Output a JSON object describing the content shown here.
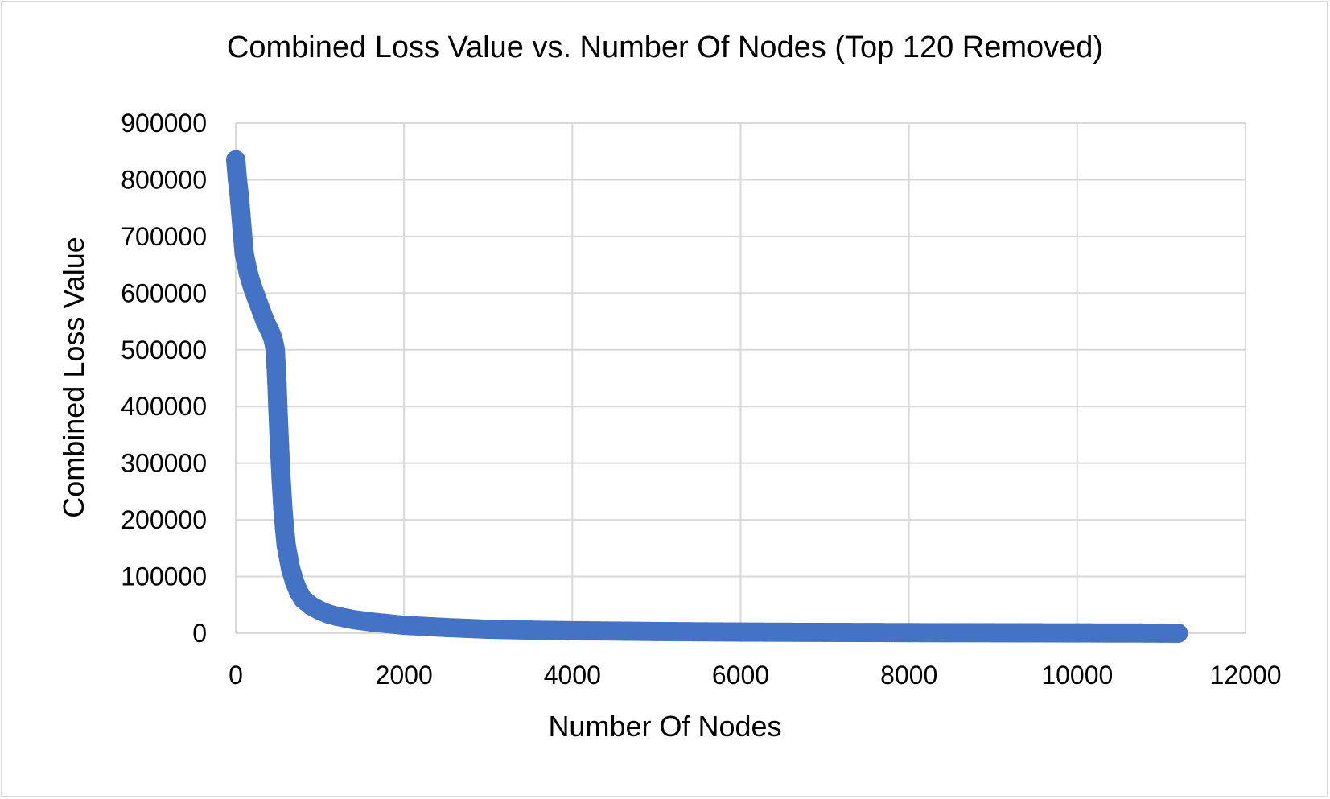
{
  "chart_data": {
    "type": "scatter",
    "title": "Combined Loss Value vs. Number Of Nodes (Top 120 Removed)",
    "xlabel": "Number Of Nodes",
    "ylabel": "Combined Loss Value",
    "xlim": [
      0,
      12000
    ],
    "ylim": [
      0,
      900000
    ],
    "x_ticks": [
      "0",
      "2000",
      "4000",
      "6000",
      "8000",
      "10000",
      "12000"
    ],
    "y_ticks": [
      "0",
      "100000",
      "200000",
      "300000",
      "400000",
      "500000",
      "600000",
      "700000",
      "800000",
      "900000"
    ],
    "grid": true,
    "legend": "none",
    "series": [
      {
        "color": "#4472c4",
        "x": [
          0,
          20,
          40,
          60,
          80,
          100,
          150,
          200,
          250,
          300,
          350,
          400,
          430,
          450,
          470,
          480,
          490,
          500,
          520,
          540,
          560,
          580,
          600,
          650,
          700,
          750,
          800,
          900,
          1000,
          1100,
          1200,
          1400,
          1600,
          1800,
          2000,
          2500,
          3000,
          3500,
          4000,
          5000,
          6000,
          7000,
          8000,
          9000,
          10000,
          11000,
          11200
        ],
        "y": [
          835000,
          800000,
          775000,
          740000,
          705000,
          670000,
          635000,
          610000,
          590000,
          570000,
          550000,
          535000,
          525000,
          515000,
          500000,
          470000,
          440000,
          400000,
          330000,
          270000,
          220000,
          185000,
          155000,
          115000,
          90000,
          72000,
          60000,
          48000,
          40000,
          34000,
          30000,
          24000,
          20000,
          17000,
          14000,
          10000,
          7000,
          5500,
          4500,
          3000,
          2000,
          1500,
          1000,
          800,
          500,
          200,
          0
        ]
      }
    ]
  }
}
